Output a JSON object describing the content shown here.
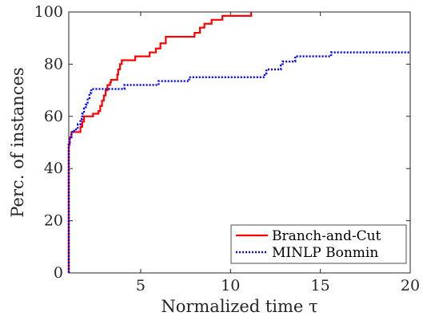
{
  "chart_data": {
    "type": "line",
    "xlabel": "Normalized time τ",
    "ylabel": "Perc. of instances",
    "xlim": [
      1,
      20
    ],
    "ylim": [
      0,
      100
    ],
    "xticks": [
      5,
      10,
      15,
      20
    ],
    "yticks": [
      0,
      20,
      40,
      60,
      80,
      100
    ],
    "grid": false,
    "legend_position": "bottom-right",
    "series": [
      {
        "name": "Branch-and-Cut",
        "color": "#ff0000",
        "style": "solid",
        "step": true,
        "points": [
          [
            1.0,
            0
          ],
          [
            1.0,
            49
          ],
          [
            1.05,
            52
          ],
          [
            1.15,
            54
          ],
          [
            1.55,
            54
          ],
          [
            1.65,
            56
          ],
          [
            1.75,
            58
          ],
          [
            1.85,
            60
          ],
          [
            2.3,
            60
          ],
          [
            2.35,
            61
          ],
          [
            2.65,
            62
          ],
          [
            2.75,
            64
          ],
          [
            2.85,
            66
          ],
          [
            2.95,
            68
          ],
          [
            3.05,
            70
          ],
          [
            3.15,
            72
          ],
          [
            3.3,
            73
          ],
          [
            3.35,
            74
          ],
          [
            3.65,
            74
          ],
          [
            3.7,
            76
          ],
          [
            3.75,
            78
          ],
          [
            3.85,
            80
          ],
          [
            3.95,
            81.5
          ],
          [
            4.6,
            81.5
          ],
          [
            4.7,
            83
          ],
          [
            5.4,
            83
          ],
          [
            5.5,
            84.5
          ],
          [
            5.8,
            84.5
          ],
          [
            5.85,
            86
          ],
          [
            6.05,
            86
          ],
          [
            6.1,
            88
          ],
          [
            6.35,
            88
          ],
          [
            6.4,
            90.5
          ],
          [
            7.9,
            90.5
          ],
          [
            8.0,
            92
          ],
          [
            8.25,
            92
          ],
          [
            8.3,
            94
          ],
          [
            8.5,
            94
          ],
          [
            8.55,
            95.5
          ],
          [
            8.9,
            95.5
          ],
          [
            8.95,
            97
          ],
          [
            9.5,
            97
          ],
          [
            9.55,
            98.5
          ],
          [
            11.1,
            98.5
          ],
          [
            11.15,
            100
          ]
        ]
      },
      {
        "name": "MINLP Bonmin",
        "color": "#0000ff",
        "style": "dotted",
        "step": true,
        "points": [
          [
            1.0,
            0
          ],
          [
            1.0,
            50
          ],
          [
            1.05,
            52
          ],
          [
            1.15,
            54
          ],
          [
            1.3,
            55
          ],
          [
            1.5,
            57
          ],
          [
            1.65,
            59
          ],
          [
            1.75,
            61
          ],
          [
            1.85,
            63
          ],
          [
            1.95,
            64.5
          ],
          [
            2.05,
            67
          ],
          [
            2.15,
            69
          ],
          [
            2.25,
            70.5
          ],
          [
            4.0,
            70.5
          ],
          [
            4.1,
            72
          ],
          [
            5.9,
            72
          ],
          [
            6.0,
            73.5
          ],
          [
            7.6,
            73.5
          ],
          [
            7.7,
            75
          ],
          [
            11.8,
            75
          ],
          [
            11.9,
            76.5
          ],
          [
            12.0,
            78
          ],
          [
            12.7,
            78
          ],
          [
            12.8,
            79.5
          ],
          [
            12.9,
            81
          ],
          [
            13.5,
            81
          ],
          [
            13.6,
            83
          ],
          [
            15.5,
            83
          ],
          [
            15.6,
            84.5
          ],
          [
            20,
            84.5
          ]
        ]
      }
    ]
  }
}
